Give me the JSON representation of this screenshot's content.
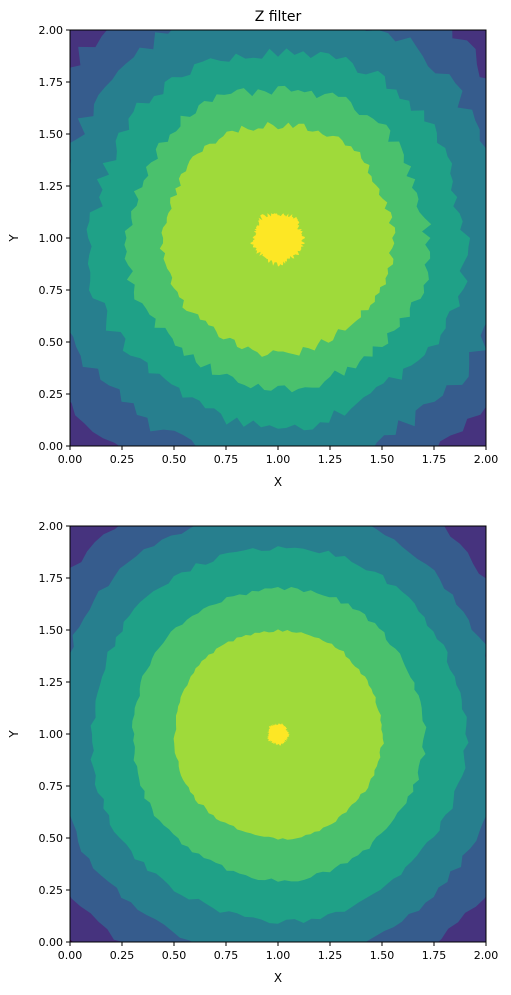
{
  "chart_data": [
    {
      "type": "contour",
      "title": "Z filter",
      "xlabel": "X",
      "ylabel": "Y",
      "xlim": [
        0,
        2
      ],
      "ylim": [
        0,
        2
      ],
      "xticks": [
        "0.00",
        "0.25",
        "0.50",
        "0.75",
        "1.00",
        "1.25",
        "1.50",
        "1.75",
        "2.00"
      ],
      "yticks": [
        "0.00",
        "0.25",
        "0.50",
        "0.75",
        "1.00",
        "1.25",
        "1.50",
        "1.75",
        "2.00"
      ],
      "grid": false,
      "center": [
        1.0,
        1.0
      ],
      "contour_radii": [
        0.12,
        0.55,
        0.72,
        0.9,
        1.1,
        1.28,
        1.45
      ],
      "noisy": true,
      "colormap": [
        "#440154",
        "#46337e",
        "#365c8d",
        "#277f8e",
        "#1fa187",
        "#4ac16d",
        "#9fda3a",
        "#fde725"
      ]
    },
    {
      "type": "contour",
      "title": "",
      "xlabel": "X",
      "ylabel": "Y",
      "xlim": [
        0,
        2
      ],
      "ylim": [
        0,
        2
      ],
      "xticks": [
        "0.00",
        "0.25",
        "0.50",
        "0.75",
        "1.00",
        "1.25",
        "1.50",
        "1.75",
        "2.00"
      ],
      "yticks": [
        "0.00",
        "0.25",
        "0.50",
        "0.75",
        "1.00",
        "1.25",
        "1.50",
        "1.75",
        "2.00"
      ],
      "grid": false,
      "center": [
        1.0,
        1.0
      ],
      "contour_radii": [
        0.05,
        0.5,
        0.7,
        0.9,
        1.08,
        1.26,
        1.42
      ],
      "noisy": false,
      "colormap": [
        "#440154",
        "#46337e",
        "#365c8d",
        "#277f8e",
        "#1fa187",
        "#4ac16d",
        "#9fda3a",
        "#fde725"
      ]
    }
  ]
}
